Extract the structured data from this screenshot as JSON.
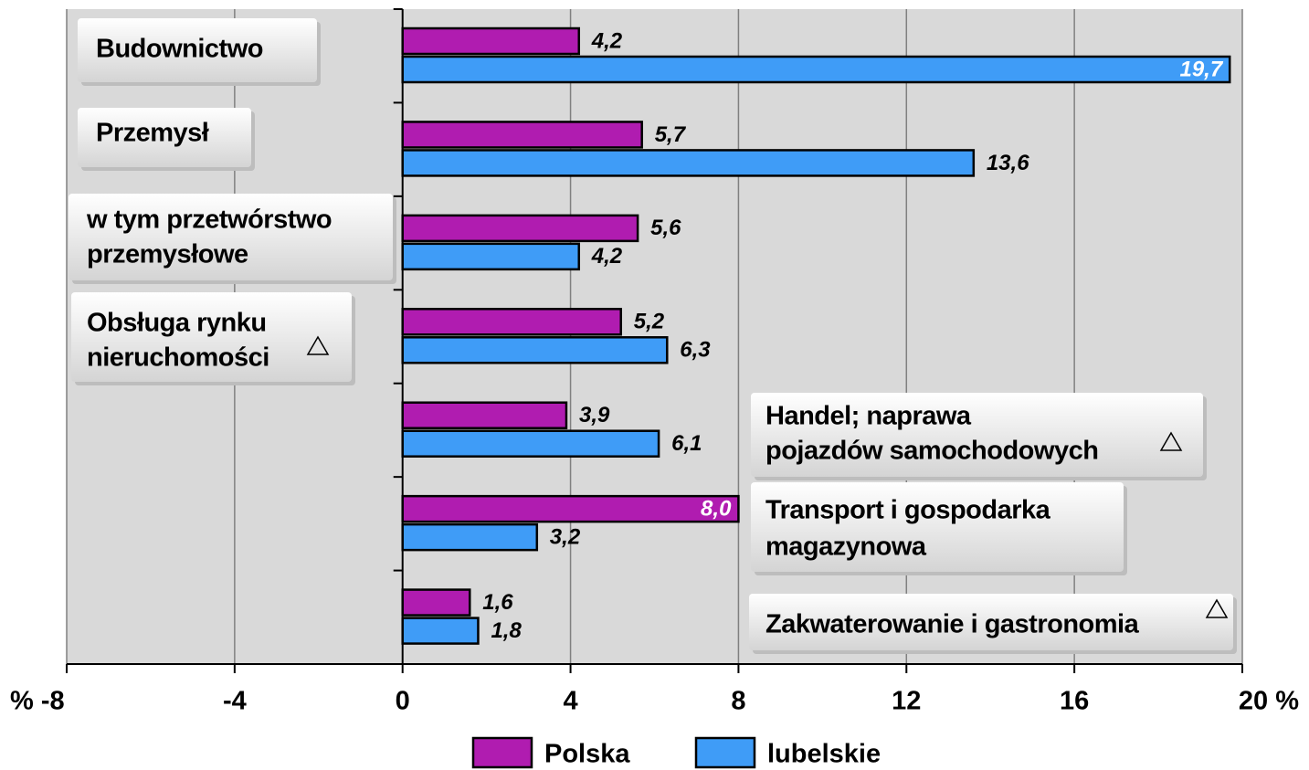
{
  "chart_data": {
    "type": "barh",
    "categories": [
      [
        "Budownictwo"
      ],
      [
        "Przemysł"
      ],
      [
        "w tym przetwórstwo",
        "przemysłowe"
      ],
      [
        "Obsługa rynku",
        "nieruchomości"
      ],
      [
        "Handel; naprawa",
        "pojazdów samochodowych"
      ],
      [
        "Transport i gospodarka",
        "magazynowa"
      ],
      [
        "Zakwaterowanie i gastronomia"
      ]
    ],
    "series": [
      {
        "name": "Polska",
        "color": "#b01cb0",
        "values": [
          4.2,
          5.7,
          5.6,
          5.2,
          3.9,
          8.0,
          1.6
        ],
        "value_labels": [
          "4,2",
          "5,7",
          "5,6",
          "5,2",
          "3,9",
          "8,0",
          "1,6"
        ]
      },
      {
        "name": "lubelskie",
        "color": "#3f9cf7",
        "values": [
          19.7,
          13.6,
          4.2,
          6.3,
          6.1,
          3.2,
          1.8
        ],
        "value_labels": [
          "19,7",
          "13,6",
          "4,2",
          "6,3",
          "6,1",
          "3,2",
          "1,8"
        ]
      }
    ],
    "xlim": [
      -8,
      20
    ],
    "xticks": [
      {
        "value": -8,
        "label": "% -8"
      },
      -4,
      0,
      4,
      8,
      12,
      16,
      {
        "value": 20,
        "label": "20 %"
      }
    ],
    "grid": true
  }
}
